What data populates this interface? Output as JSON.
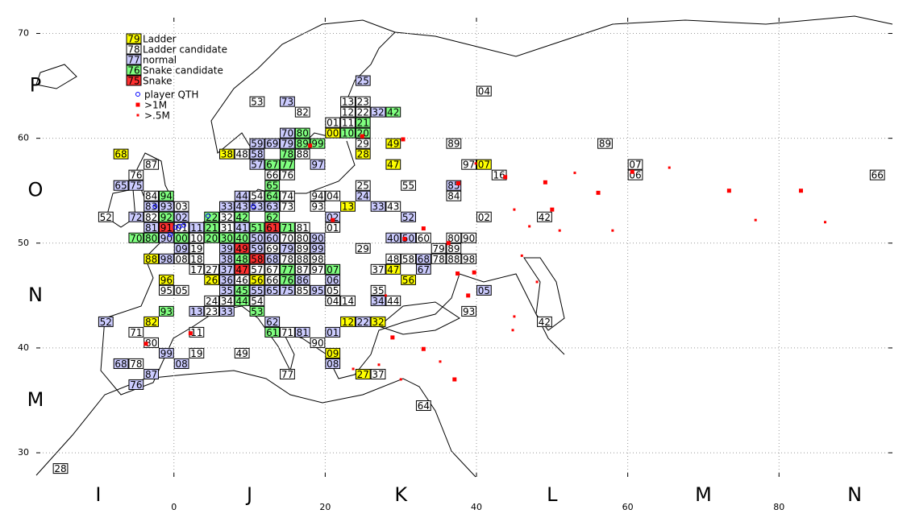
{
  "map": {
    "xlim": [
      -18.2,
      95
    ],
    "ylim": [
      27.7,
      71.5
    ],
    "xticks": [
      0,
      20,
      40,
      60,
      80
    ],
    "yticks": [
      30,
      40,
      50,
      60,
      70
    ],
    "grid": true,
    "legend": [
      {
        "sample": "79",
        "label": "Ladder",
        "color": "#ffff00"
      },
      {
        "sample": "78",
        "label": "Ladder candidate",
        "color": "#ffffff"
      },
      {
        "sample": "77",
        "label": "normal",
        "color": "#ccccff"
      },
      {
        "sample": "76",
        "label": "Snake candidate",
        "color": "#80ff80"
      },
      {
        "sample": "75",
        "label": "Snake",
        "color": "#ff3030"
      }
    ],
    "marker_legend": [
      {
        "label": "player QTH",
        "color": "#0000ff"
      },
      {
        "label": ">1M",
        "color": "#ff0000"
      },
      {
        "label": ">.5M",
        "color": "#ff0000"
      }
    ],
    "field_rows": [
      {
        "label": "P",
        "lat": 65
      },
      {
        "label": "O",
        "lat": 55
      },
      {
        "label": "N",
        "lat": 45
      },
      {
        "label": "M",
        "lat": 35
      }
    ],
    "field_cols": [
      {
        "label": "I",
        "lon": -10
      },
      {
        "label": "J",
        "lon": 10
      },
      {
        "label": "K",
        "lon": 30
      },
      {
        "label": "L",
        "lon": 50
      },
      {
        "label": "M",
        "lon": 70
      },
      {
        "label": "N",
        "lon": 90
      }
    ],
    "squares": [
      [
        "25",
        24,
        65,
        2
      ],
      [
        "04",
        40,
        64,
        1
      ],
      [
        "53",
        10,
        63,
        1
      ],
      [
        "73",
        14,
        63,
        2
      ],
      [
        "82",
        16,
        62,
        1
      ],
      [
        "13",
        22,
        63,
        1
      ],
      [
        "23",
        24,
        63,
        1
      ],
      [
        "12",
        22,
        62,
        1
      ],
      [
        "22",
        24,
        62,
        1
      ],
      [
        "32",
        26,
        62,
        2
      ],
      [
        "42",
        28,
        62,
        3
      ],
      [
        "01",
        20,
        61,
        1
      ],
      [
        "11",
        22,
        61,
        1
      ],
      [
        "21",
        24,
        61,
        3
      ],
      [
        "00",
        20,
        60,
        0
      ],
      [
        "10",
        22,
        60,
        3
      ],
      [
        "20",
        24,
        60,
        3
      ],
      [
        "70",
        14,
        60,
        2
      ],
      [
        "80",
        16,
        60,
        3
      ],
      [
        "59",
        10,
        59,
        2
      ],
      [
        "69",
        12,
        59,
        2
      ],
      [
        "79",
        14,
        59,
        2
      ],
      [
        "89",
        16,
        59,
        3
      ],
      [
        "99",
        18,
        59,
        3
      ],
      [
        "29",
        24,
        59,
        1
      ],
      [
        "49",
        28,
        59,
        0
      ],
      [
        "89",
        36,
        59,
        1
      ],
      [
        "89",
        56,
        59,
        1
      ],
      [
        "38",
        6,
        58,
        0
      ],
      [
        "48",
        8,
        58,
        1
      ],
      [
        "58",
        10,
        58,
        2
      ],
      [
        "78",
        14,
        58,
        3
      ],
      [
        "88",
        16,
        58,
        1
      ],
      [
        "28",
        24,
        58,
        0
      ],
      [
        "68",
        -8,
        58,
        0
      ],
      [
        "57",
        10,
        57,
        2
      ],
      [
        "67",
        12,
        57,
        3
      ],
      [
        "77",
        14,
        57,
        3
      ],
      [
        "97",
        18,
        57,
        2
      ],
      [
        "47",
        28,
        57,
        0
      ],
      [
        "97",
        38,
        57,
        1
      ],
      [
        "07",
        40,
        57,
        0
      ],
      [
        "07",
        60,
        57,
        1
      ],
      [
        "87",
        -4,
        57,
        1
      ],
      [
        "66",
        12,
        56,
        1
      ],
      [
        "76",
        14,
        56,
        1
      ],
      [
        "16",
        42,
        56,
        1
      ],
      [
        "06",
        60,
        56,
        1
      ],
      [
        "66",
        92,
        56,
        1
      ],
      [
        "76",
        -6,
        56,
        1
      ],
      [
        "65",
        -8,
        55,
        2
      ],
      [
        "75",
        -6,
        55,
        2
      ],
      [
        "65",
        12,
        55,
        3
      ],
      [
        "25",
        24,
        55,
        1
      ],
      [
        "55",
        30,
        55,
        1
      ],
      [
        "85",
        36,
        55,
        2
      ],
      [
        "84",
        -4,
        54,
        1
      ],
      [
        "94",
        -2,
        54,
        3
      ],
      [
        "44",
        8,
        54,
        2
      ],
      [
        "54",
        10,
        54,
        1
      ],
      [
        "64",
        12,
        54,
        3
      ],
      [
        "74",
        14,
        54,
        1
      ],
      [
        "94",
        18,
        54,
        1
      ],
      [
        "04",
        20,
        54,
        1
      ],
      [
        "24",
        24,
        54,
        2
      ],
      [
        "84",
        36,
        54,
        1
      ],
      [
        "83",
        -4,
        53,
        2
      ],
      [
        "93",
        -2,
        53,
        2
      ],
      [
        "03",
        0,
        53,
        1
      ],
      [
        "33",
        6,
        53,
        2
      ],
      [
        "43",
        8,
        53,
        2
      ],
      [
        "53",
        10,
        53,
        2
      ],
      [
        "63",
        12,
        53,
        2
      ],
      [
        "73",
        14,
        53,
        1
      ],
      [
        "93",
        18,
        53,
        1
      ],
      [
        "13",
        22,
        53,
        0
      ],
      [
        "33",
        26,
        53,
        2
      ],
      [
        "43",
        28,
        53,
        1
      ],
      [
        "52",
        -10,
        52,
        1
      ],
      [
        "72",
        -6,
        52,
        2
      ],
      [
        "82",
        -4,
        52,
        1
      ],
      [
        "92",
        -2,
        52,
        3
      ],
      [
        "02",
        0,
        52,
        2
      ],
      [
        "22",
        4,
        52,
        3
      ],
      [
        "32",
        6,
        52,
        1
      ],
      [
        "42",
        8,
        52,
        3
      ],
      [
        "62",
        12,
        52,
        3
      ],
      [
        "02",
        20,
        52,
        2
      ],
      [
        "52",
        30,
        52,
        2
      ],
      [
        "02",
        40,
        52,
        1
      ],
      [
        "42",
        48,
        52,
        1
      ],
      [
        "81",
        -4,
        51,
        2
      ],
      [
        "91",
        -2,
        51,
        4
      ],
      [
        "01",
        0,
        51,
        1
      ],
      [
        "11",
        2,
        51,
        2
      ],
      [
        "21",
        4,
        51,
        3
      ],
      [
        "31",
        6,
        51,
        1
      ],
      [
        "41",
        8,
        51,
        2
      ],
      [
        "51",
        10,
        51,
        3
      ],
      [
        "61",
        12,
        51,
        4
      ],
      [
        "71",
        14,
        51,
        3
      ],
      [
        "81",
        16,
        51,
        1
      ],
      [
        "01",
        20,
        51,
        1
      ],
      [
        "70",
        -6,
        50,
        3
      ],
      [
        "80",
        -4,
        50,
        3
      ],
      [
        "90",
        -2,
        50,
        2
      ],
      [
        "00",
        0,
        50,
        3
      ],
      [
        "10",
        2,
        50,
        1
      ],
      [
        "20",
        4,
        50,
        3
      ],
      [
        "30",
        6,
        50,
        3
      ],
      [
        "40",
        8,
        50,
        3
      ],
      [
        "50",
        10,
        50,
        2
      ],
      [
        "60",
        12,
        50,
        2
      ],
      [
        "70",
        14,
        50,
        1
      ],
      [
        "80",
        16,
        50,
        1
      ],
      [
        "90",
        18,
        50,
        2
      ],
      [
        "40",
        28,
        50,
        2
      ],
      [
        "50",
        30,
        50,
        2
      ],
      [
        "60",
        32,
        50,
        1
      ],
      [
        "80",
        36,
        50,
        1
      ],
      [
        "90",
        38,
        50,
        1
      ],
      [
        "09",
        0,
        49,
        2
      ],
      [
        "19",
        2,
        49,
        1
      ],
      [
        "39",
        6,
        49,
        2
      ],
      [
        "49",
        8,
        49,
        4
      ],
      [
        "59",
        10,
        49,
        2
      ],
      [
        "69",
        12,
        49,
        1
      ],
      [
        "79",
        14,
        49,
        2
      ],
      [
        "89",
        16,
        49,
        1
      ],
      [
        "99",
        18,
        49,
        2
      ],
      [
        "29",
        24,
        49,
        1
      ],
      [
        "79",
        34,
        49,
        1
      ],
      [
        "89",
        36,
        49,
        1
      ],
      [
        "88",
        -4,
        48,
        0
      ],
      [
        "98",
        -2,
        48,
        2
      ],
      [
        "08",
        0,
        48,
        1
      ],
      [
        "18",
        2,
        48,
        1
      ],
      [
        "38",
        6,
        48,
        2
      ],
      [
        "48",
        8,
        48,
        3
      ],
      [
        "58",
        10,
        48,
        4
      ],
      [
        "68",
        12,
        48,
        2
      ],
      [
        "78",
        14,
        48,
        1
      ],
      [
        "88",
        16,
        48,
        1
      ],
      [
        "98",
        18,
        48,
        1
      ],
      [
        "48",
        28,
        48,
        1
      ],
      [
        "58",
        30,
        48,
        1
      ],
      [
        "68",
        32,
        48,
        2
      ],
      [
        "78",
        34,
        48,
        1
      ],
      [
        "88",
        36,
        48,
        1
      ],
      [
        "98",
        38,
        48,
        1
      ],
      [
        "17",
        2,
        47,
        1
      ],
      [
        "27",
        4,
        47,
        1
      ],
      [
        "37",
        6,
        47,
        2
      ],
      [
        "47",
        8,
        47,
        4
      ],
      [
        "57",
        10,
        47,
        1
      ],
      [
        "67",
        12,
        47,
        1
      ],
      [
        "77",
        14,
        47,
        3
      ],
      [
        "87",
        16,
        47,
        1
      ],
      [
        "97",
        18,
        47,
        1
      ],
      [
        "07",
        20,
        47,
        3
      ],
      [
        "37",
        26,
        47,
        1
      ],
      [
        "47",
        28,
        47,
        0
      ],
      [
        "67",
        32,
        47,
        2
      ],
      [
        "96",
        -2,
        46,
        0
      ],
      [
        "26",
        4,
        46,
        0
      ],
      [
        "36",
        6,
        46,
        2
      ],
      [
        "46",
        8,
        46,
        1
      ],
      [
        "56",
        10,
        46,
        0
      ],
      [
        "66",
        12,
        46,
        1
      ],
      [
        "76",
        14,
        46,
        3
      ],
      [
        "86",
        16,
        46,
        2
      ],
      [
        "06",
        20,
        46,
        2
      ],
      [
        "56",
        30,
        46,
        0
      ],
      [
        "95",
        -2,
        45,
        1
      ],
      [
        "05",
        0,
        45,
        1
      ],
      [
        "35",
        6,
        45,
        2
      ],
      [
        "45",
        8,
        45,
        3
      ],
      [
        "55",
        10,
        45,
        2
      ],
      [
        "65",
        12,
        45,
        2
      ],
      [
        "75",
        14,
        45,
        2
      ],
      [
        "85",
        16,
        45,
        1
      ],
      [
        "95",
        18,
        45,
        2
      ],
      [
        "05",
        20,
        45,
        1
      ],
      [
        "35",
        26,
        45,
        1
      ],
      [
        "05",
        40,
        45,
        2
      ],
      [
        "24",
        4,
        44,
        1
      ],
      [
        "34",
        6,
        44,
        1
      ],
      [
        "44",
        8,
        44,
        3
      ],
      [
        "54",
        10,
        44,
        1
      ],
      [
        "04",
        20,
        44,
        1
      ],
      [
        "14",
        22,
        44,
        1
      ],
      [
        "34",
        26,
        44,
        2
      ],
      [
        "44",
        28,
        44,
        1
      ],
      [
        "93",
        -2,
        43,
        3
      ],
      [
        "13",
        2,
        43,
        2
      ],
      [
        "23",
        4,
        43,
        1
      ],
      [
        "33",
        6,
        43,
        2
      ],
      [
        "53",
        10,
        43,
        3
      ],
      [
        "93",
        38,
        43,
        1
      ],
      [
        "52",
        -10,
        42,
        2
      ],
      [
        "82",
        -4,
        42,
        0
      ],
      [
        "62",
        12,
        42,
        2
      ],
      [
        "12",
        22,
        42,
        0
      ],
      [
        "22",
        24,
        42,
        2
      ],
      [
        "32",
        26,
        42,
        0
      ],
      [
        "42",
        48,
        42,
        1
      ],
      [
        "71",
        -6,
        41,
        1
      ],
      [
        "11",
        2,
        41,
        1
      ],
      [
        "61",
        12,
        41,
        3
      ],
      [
        "71",
        14,
        41,
        1
      ],
      [
        "81",
        16,
        41,
        2
      ],
      [
        "01",
        20,
        41,
        2
      ],
      [
        "80",
        -4,
        40,
        1
      ],
      [
        "90",
        18,
        40,
        1
      ],
      [
        "99",
        -2,
        39,
        2
      ],
      [
        "19",
        2,
        39,
        1
      ],
      [
        "49",
        8,
        39,
        1
      ],
      [
        "09",
        20,
        39,
        0
      ],
      [
        "68",
        -8,
        38,
        2
      ],
      [
        "78",
        -6,
        38,
        1
      ],
      [
        "08",
        0,
        38,
        2
      ],
      [
        "08",
        20,
        38,
        2
      ],
      [
        "87",
        -4,
        37,
        2
      ],
      [
        "77",
        14,
        37,
        1
      ],
      [
        "27",
        24,
        37,
        0
      ],
      [
        "37",
        26,
        37,
        1
      ],
      [
        "76",
        -6,
        36,
        2
      ],
      [
        "64",
        32,
        34,
        1
      ],
      [
        "28",
        -16,
        28,
        1
      ]
    ],
    "qth": [
      [
        0.2,
        51.5
      ],
      [
        0.8,
        51.6
      ],
      [
        1.3,
        51.7
      ],
      [
        -0.5,
        50.8
      ],
      [
        -2.5,
        53.5
      ],
      [
        4.5,
        52.6
      ],
      [
        10.5,
        53.5
      ]
    ],
    "big": [
      [
        43.8,
        56.3
      ],
      [
        49.1,
        55.8
      ],
      [
        56.1,
        54.8
      ],
      [
        60.6,
        56.8
      ],
      [
        73.4,
        55
      ],
      [
        82.9,
        55
      ],
      [
        37.6,
        55.7
      ],
      [
        33,
        51.4
      ],
      [
        36.3,
        50
      ],
      [
        30.5,
        50.4
      ],
      [
        50,
        53.2
      ],
      [
        37.5,
        47.1
      ],
      [
        39.7,
        47.2
      ],
      [
        38.9,
        45
      ],
      [
        28.9,
        41
      ],
      [
        33,
        39.9
      ],
      [
        37.1,
        37
      ],
      [
        18,
        59.3
      ],
      [
        24.9,
        60.2
      ],
      [
        30.3,
        59.9
      ],
      [
        -3.7,
        40.4
      ],
      [
        2.2,
        41.4
      ],
      [
        21,
        52.2
      ]
    ],
    "small": [
      [
        53,
        56.7
      ],
      [
        65.5,
        57.2
      ],
      [
        39.9,
        57.6
      ],
      [
        45,
        53.2
      ],
      [
        47,
        51.6
      ],
      [
        46,
        48.8
      ],
      [
        48,
        46.3
      ],
      [
        51,
        51.2
      ],
      [
        58,
        51.2
      ],
      [
        76.9,
        52.2
      ],
      [
        86.1,
        52
      ],
      [
        28,
        45
      ],
      [
        35.2,
        38.7
      ],
      [
        30,
        37
      ],
      [
        45,
        43
      ],
      [
        44.8,
        41.7
      ],
      [
        27.1,
        38.4
      ],
      [
        23.7,
        38
      ]
    ]
  }
}
